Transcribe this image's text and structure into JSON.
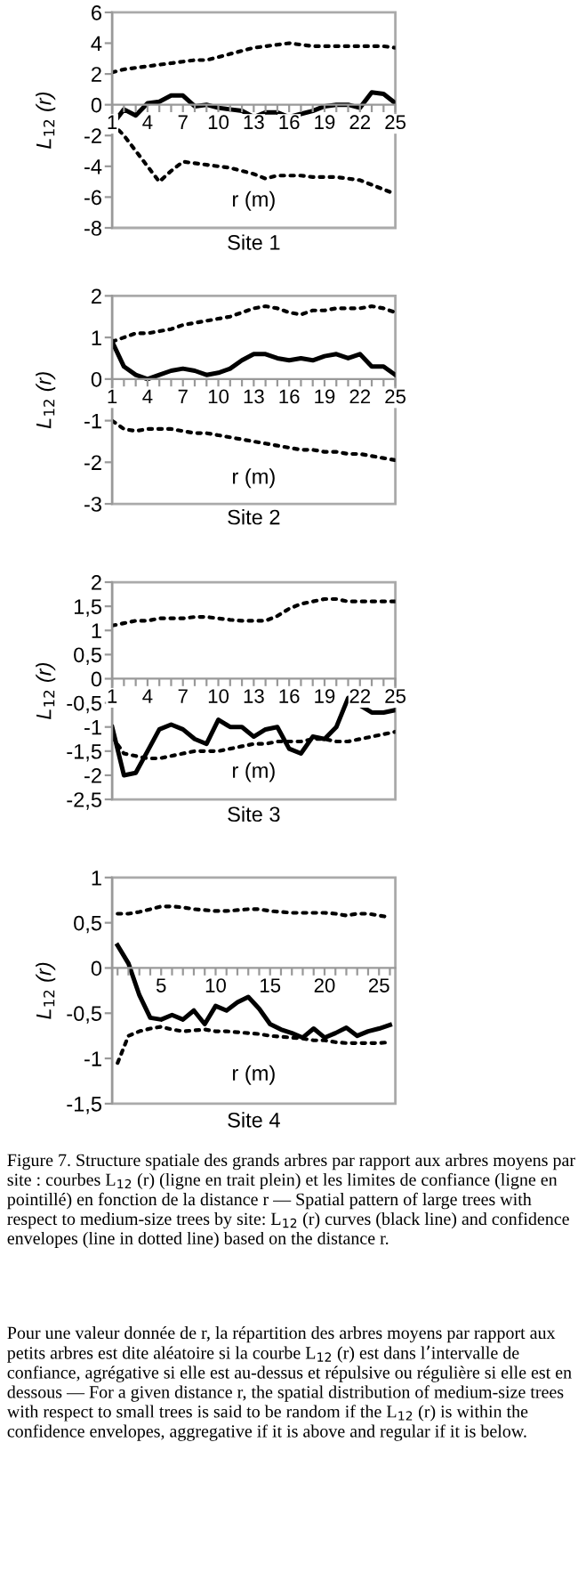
{
  "chart_data": [
    {
      "type": "line",
      "title": "Site 1",
      "xlabel": "r (m)",
      "ylabel": "L$_{12}$ (r)",
      "grid": false,
      "legend": false,
      "marker": "none",
      "x": [
        1,
        2,
        3,
        4,
        5,
        6,
        7,
        8,
        9,
        10,
        11,
        12,
        13,
        14,
        15,
        16,
        17,
        18,
        19,
        20,
        21,
        22,
        23,
        24,
        25
      ],
      "xlim": [
        1,
        25
      ],
      "xticks": [
        1,
        {
          "value": 2,
          "label": null
        },
        {
          "value": 3,
          "label": null
        },
        4,
        {
          "value": 5,
          "label": null
        },
        {
          "value": 6,
          "label": null
        },
        7,
        {
          "value": 8,
          "label": null
        },
        {
          "value": 9,
          "label": null
        },
        10,
        {
          "value": 11,
          "label": null
        },
        {
          "value": 12,
          "label": null
        },
        13,
        {
          "value": 14,
          "label": null
        },
        {
          "value": 15,
          "label": null
        },
        16,
        {
          "value": 17,
          "label": null
        },
        {
          "value": 18,
          "label": null
        },
        19,
        {
          "value": 20,
          "label": null
        },
        {
          "value": 21,
          "label": null
        },
        22,
        {
          "value": 23,
          "label": null
        },
        {
          "value": 24,
          "label": null
        },
        25
      ],
      "ylim": [
        -8,
        6
      ],
      "yticks": [
        -8,
        -6,
        -4,
        -2,
        0,
        2,
        4,
        6
      ],
      "series": [
        {
          "color": "#000000",
          "line_style": "solid",
          "values": [
            -1.3,
            -0.3,
            -0.7,
            0.1,
            0.2,
            0.6,
            0.6,
            -0.1,
            0,
            -0.2,
            -0.3,
            -0.4,
            -0.8,
            -0.5,
            -0.5,
            -0.8,
            -0.6,
            -0.4,
            -0.1,
            0,
            0,
            -0.2,
            0.8,
            0.7,
            0.1
          ]
        },
        {
          "color": "#000000",
          "line_style": "dotted",
          "values": [
            2.1,
            2.3,
            2.4,
            2.5,
            2.6,
            2.7,
            2.8,
            2.9,
            2.9,
            3.1,
            3.3,
            3.5,
            3.7,
            3.8,
            3.9,
            4.0,
            3.9,
            3.8,
            3.8,
            3.8,
            3.8,
            3.8,
            3.8,
            3.8,
            3.7
          ]
        },
        {
          "color": "#000000",
          "line_style": "dotted",
          "values": [
            -1.2,
            -2,
            -3,
            -4,
            -5,
            -4.3,
            -3.7,
            -3.8,
            -3.9,
            -4.0,
            -4.1,
            -4.3,
            -4.5,
            -4.8,
            -4.6,
            -4.6,
            -4.6,
            -4.7,
            -4.7,
            -4.7,
            -4.8,
            -4.9,
            -5.2,
            -5.5,
            -5.8
          ]
        }
      ]
    },
    {
      "type": "line",
      "title": "Site 2",
      "xlabel": "r (m)",
      "ylabel": "L$_{12}$ (r)",
      "grid": false,
      "legend": false,
      "marker": "none",
      "x": [
        1,
        2,
        3,
        4,
        5,
        6,
        7,
        8,
        9,
        10,
        11,
        12,
        13,
        14,
        15,
        16,
        17,
        18,
        19,
        20,
        21,
        22,
        23,
        24,
        25
      ],
      "xlim": [
        1,
        25
      ],
      "xticks": [
        1,
        {
          "value": 2,
          "label": null
        },
        {
          "value": 3,
          "label": null
        },
        4,
        {
          "value": 5,
          "label": null
        },
        {
          "value": 6,
          "label": null
        },
        7,
        {
          "value": 8,
          "label": null
        },
        {
          "value": 9,
          "label": null
        },
        10,
        {
          "value": 11,
          "label": null
        },
        {
          "value": 12,
          "label": null
        },
        13,
        {
          "value": 14,
          "label": null
        },
        {
          "value": 15,
          "label": null
        },
        16,
        {
          "value": 17,
          "label": null
        },
        {
          "value": 18,
          "label": null
        },
        19,
        {
          "value": 20,
          "label": null
        },
        {
          "value": 21,
          "label": null
        },
        22,
        {
          "value": 23,
          "label": null
        },
        {
          "value": 24,
          "label": null
        },
        25
      ],
      "ylim": [
        -3,
        2
      ],
      "yticks": [
        -3,
        -2,
        -1,
        0,
        1,
        2
      ],
      "series": [
        {
          "color": "#000000",
          "line_style": "solid",
          "values": [
            0.9,
            0.3,
            0.1,
            0,
            0.1,
            0.2,
            0.25,
            0.2,
            0.1,
            0.15,
            0.25,
            0.45,
            0.6,
            0.6,
            0.5,
            0.45,
            0.5,
            0.45,
            0.55,
            0.6,
            0.5,
            0.6,
            0.3,
            0.3,
            0.1
          ]
        },
        {
          "color": "#000000",
          "line_style": "dotted",
          "values": [
            0.9,
            1.0,
            1.1,
            1.1,
            1.15,
            1.2,
            1.3,
            1.35,
            1.4,
            1.45,
            1.5,
            1.6,
            1.7,
            1.75,
            1.7,
            1.6,
            1.55,
            1.65,
            1.65,
            1.7,
            1.7,
            1.7,
            1.75,
            1.7,
            1.6
          ]
        },
        {
          "color": "#000000",
          "line_style": "dotted",
          "values": [
            -1.0,
            -1.2,
            -1.25,
            -1.2,
            -1.2,
            -1.2,
            -1.25,
            -1.3,
            -1.3,
            -1.35,
            -1.4,
            -1.45,
            -1.5,
            -1.55,
            -1.6,
            -1.65,
            -1.7,
            -1.7,
            -1.75,
            -1.75,
            -1.8,
            -1.8,
            -1.85,
            -1.9,
            -1.95
          ]
        }
      ]
    },
    {
      "type": "line",
      "title": "Site 3",
      "xlabel": "r (m)",
      "ylabel": "L$_{12}$ (r)",
      "grid": false,
      "legend": false,
      "marker": "none",
      "x": [
        1,
        2,
        3,
        4,
        5,
        6,
        7,
        8,
        9,
        10,
        11,
        12,
        13,
        14,
        15,
        16,
        17,
        18,
        19,
        20,
        21,
        22,
        23,
        24,
        25
      ],
      "xlim": [
        1,
        25
      ],
      "xticks": [
        1,
        {
          "value": 2,
          "label": null
        },
        {
          "value": 3,
          "label": null
        },
        4,
        {
          "value": 5,
          "label": null
        },
        {
          "value": 6,
          "label": null
        },
        7,
        {
          "value": 8,
          "label": null
        },
        {
          "value": 9,
          "label": null
        },
        10,
        {
          "value": 11,
          "label": null
        },
        {
          "value": 12,
          "label": null
        },
        13,
        {
          "value": 14,
          "label": null
        },
        {
          "value": 15,
          "label": null
        },
        16,
        {
          "value": 17,
          "label": null
        },
        {
          "value": 18,
          "label": null
        },
        19,
        {
          "value": 20,
          "label": null
        },
        {
          "value": 21,
          "label": null
        },
        22,
        {
          "value": 23,
          "label": null
        },
        {
          "value": 24,
          "label": null
        },
        25
      ],
      "ylim": [
        -2.5,
        2
      ],
      "yticks": [
        {
          "value": -2.5,
          "label": "-2,5"
        },
        -2,
        {
          "value": -1.5,
          "label": "-1,5"
        },
        -1,
        {
          "value": -0.5,
          "label": "-0,5"
        },
        0,
        {
          "value": 0.5,
          "label": "0,5"
        },
        1,
        {
          "value": 1.5,
          "label": "1,5"
        },
        2
      ],
      "series": [
        {
          "color": "#000000",
          "line_style": "solid",
          "values": [
            -1.0,
            -2.0,
            -1.95,
            -1.5,
            -1.05,
            -0.95,
            -1.05,
            -1.25,
            -1.35,
            -0.85,
            -1.0,
            -1.0,
            -1.2,
            -1.05,
            -1.0,
            -1.45,
            -1.55,
            -1.2,
            -1.25,
            -1.0,
            -0.4,
            -0.55,
            -0.7,
            -0.7,
            -0.65
          ]
        },
        {
          "color": "#000000",
          "line_style": "dotted",
          "values": [
            1.1,
            1.15,
            1.2,
            1.2,
            1.25,
            1.25,
            1.25,
            1.28,
            1.28,
            1.25,
            1.22,
            1.2,
            1.2,
            1.2,
            1.3,
            1.45,
            1.55,
            1.6,
            1.65,
            1.65,
            1.6,
            1.6,
            1.6,
            1.6,
            1.6
          ]
        },
        {
          "color": "#000000",
          "line_style": "dotted",
          "values": [
            -1.2,
            -1.55,
            -1.6,
            -1.65,
            -1.65,
            -1.6,
            -1.55,
            -1.5,
            -1.5,
            -1.5,
            -1.45,
            -1.4,
            -1.35,
            -1.35,
            -1.3,
            -1.3,
            -1.3,
            -1.25,
            -1.25,
            -1.3,
            -1.3,
            -1.25,
            -1.2,
            -1.15,
            -1.1
          ]
        }
      ]
    },
    {
      "type": "line",
      "title": "Site 4",
      "xlabel": "r (m)",
      "ylabel": "L$_{12}$ (r)",
      "grid": false,
      "legend": false,
      "marker": "none",
      "x": [
        1,
        2,
        3,
        4,
        5,
        6,
        7,
        8,
        9,
        10,
        11,
        12,
        13,
        14,
        15,
        16,
        17,
        18,
        19,
        20,
        21,
        22,
        23,
        24,
        25,
        26
      ],
      "xlim": [
        0.5,
        26.5
      ],
      "xticks": [
        {
          "value": 1,
          "label": null
        },
        {
          "value": 2,
          "label": null
        },
        {
          "value": 3,
          "label": null
        },
        {
          "value": 4,
          "label": null
        },
        5,
        {
          "value": 6,
          "label": null
        },
        {
          "value": 7,
          "label": null
        },
        {
          "value": 8,
          "label": null
        },
        {
          "value": 9,
          "label": null
        },
        10,
        {
          "value": 11,
          "label": null
        },
        {
          "value": 12,
          "label": null
        },
        {
          "value": 13,
          "label": null
        },
        {
          "value": 14,
          "label": null
        },
        15,
        {
          "value": 16,
          "label": null
        },
        {
          "value": 17,
          "label": null
        },
        {
          "value": 18,
          "label": null
        },
        {
          "value": 19,
          "label": null
        },
        20,
        {
          "value": 21,
          "label": null
        },
        {
          "value": 22,
          "label": null
        },
        {
          "value": 23,
          "label": null
        },
        {
          "value": 24,
          "label": null
        },
        25,
        {
          "value": 26,
          "label": null
        }
      ],
      "ylim": [
        -1.5,
        1
      ],
      "yticks": [
        {
          "value": -1.5,
          "label": "-1,5"
        },
        -1,
        {
          "value": -0.5,
          "label": "-0,5"
        },
        0,
        {
          "value": 0.5,
          "label": "0,5"
        },
        1
      ],
      "series": [
        {
          "color": "#000000",
          "line_style": "solid",
          "values": [
            0.25,
            0.05,
            -0.3,
            -0.55,
            -0.57,
            -0.52,
            -0.57,
            -0.47,
            -0.62,
            -0.42,
            -0.47,
            -0.38,
            -0.32,
            -0.45,
            -0.62,
            -0.68,
            -0.72,
            -0.77,
            -0.67,
            -0.77,
            -0.72,
            -0.66,
            -0.75,
            -0.7,
            -0.67,
            -0.63
          ]
        },
        {
          "color": "#000000",
          "line_style": "dotted",
          "values": [
            0.6,
            0.6,
            0.62,
            0.65,
            0.68,
            0.68,
            0.67,
            0.65,
            0.64,
            0.63,
            0.63,
            0.64,
            0.65,
            0.65,
            0.63,
            0.62,
            0.61,
            0.61,
            0.61,
            0.61,
            0.6,
            0.58,
            0.6,
            0.6,
            0.58,
            0.56
          ]
        },
        {
          "color": "#000000",
          "line_style": "dotted",
          "values": [
            -1.05,
            -0.75,
            -0.7,
            -0.67,
            -0.65,
            -0.68,
            -0.7,
            -0.69,
            -0.68,
            -0.7,
            -0.7,
            -0.71,
            -0.72,
            -0.73,
            -0.75,
            -0.76,
            -0.77,
            -0.78,
            -0.8,
            -0.8,
            -0.82,
            -0.83,
            -0.83,
            -0.83,
            -0.83,
            -0.82
          ]
        }
      ],
      "annotations": [
        "Figure 7. Structure spatiale des grands arbres par rapport aux arbres moyens par site : courbes L$_{12}$ (r) (ligne en trait plein) et les limites de confiance (ligne en pointillé) en fonction de la distance r — Spatial pattern of large trees with respect to medium-size trees by site: L$_{12}$ (r) curves (black line) and confidence envelopes (line in dotted line) based on the distance r.",
        "Pour une valeur donnée de r, la répartition des arbres moyens par rapport aux petits arbres est dite aléatoire si la courbe L$_{12}$ (r) est dans l’intervalle de confiance, agrégative si elle est au-dessus et répulsive ou régulière si elle est en dessous — For a given distance r, the spatial distribution of medium-size trees with respect to small trees is said to be random if the L$_{12}$ (r) is within the confidence envelopes, aggregative if it is above and regular if it is below."
      ]
    }
  ]
}
